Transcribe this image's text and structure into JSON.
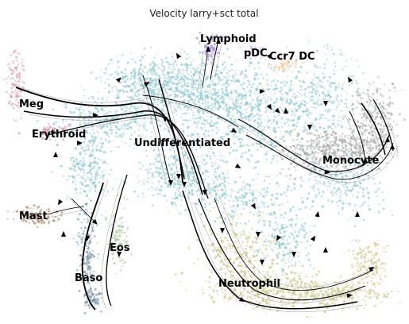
{
  "chart_data": {
    "type": "scatter",
    "title": "Velocity larry+sct total",
    "xlabel": "",
    "ylabel": "",
    "grid": false,
    "legend": "on data",
    "clusters": [
      {
        "name": "Lymphoid",
        "color": "#a58bd0"
      },
      {
        "name": "pDC",
        "color": "#c9b7e6"
      },
      {
        "name": "Ccr7 DC",
        "color": "#f7b883"
      },
      {
        "name": "Meg",
        "color": "#d6a0b2"
      },
      {
        "name": "Erythroid",
        "color": "#c78a9a"
      },
      {
        "name": "Undifferentiated",
        "color": "#8ec6cf"
      },
      {
        "name": "Monocyte",
        "color": "#a5a5a5"
      },
      {
        "name": "Mast",
        "color": "#a68566"
      },
      {
        "name": "Eos",
        "color": "#a6c29a"
      },
      {
        "name": "Baso",
        "color": "#6e8fa6"
      },
      {
        "name": "Neutrophil",
        "color": "#c6c98a"
      }
    ]
  }
}
